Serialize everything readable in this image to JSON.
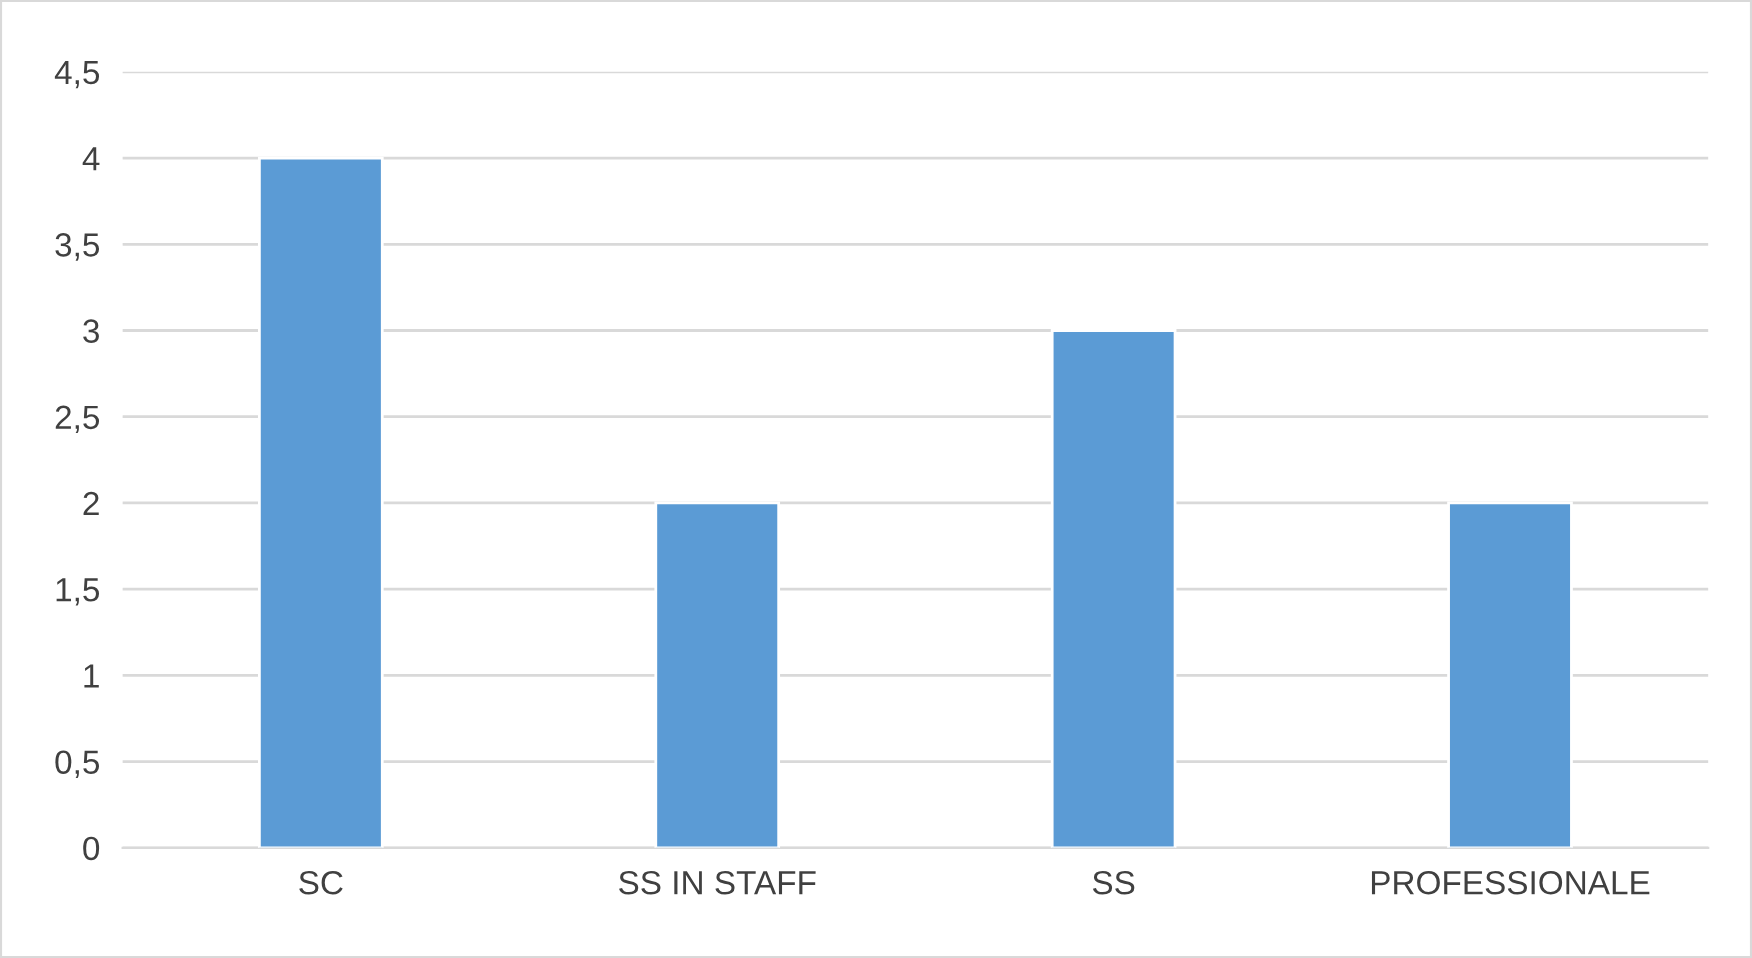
{
  "chart_data": {
    "type": "bar",
    "categories": [
      "SC",
      "SS IN STAFF",
      "SS",
      "PROFESSIONALE"
    ],
    "values": [
      4,
      2,
      3,
      2
    ],
    "color": "#5b9bd5",
    "ylim": [
      0,
      4.5
    ],
    "yticks": [
      0,
      {
        "value": 0.5,
        "label": "0,5"
      },
      1,
      {
        "value": 1.5,
        "label": "1,5"
      },
      2,
      {
        "value": 2.5,
        "label": "2,5"
      },
      3,
      {
        "value": 3.5,
        "label": "3,5"
      },
      4,
      {
        "value": 4.5,
        "label": "4,5"
      }
    ],
    "grid": "y",
    "legend": false
  }
}
